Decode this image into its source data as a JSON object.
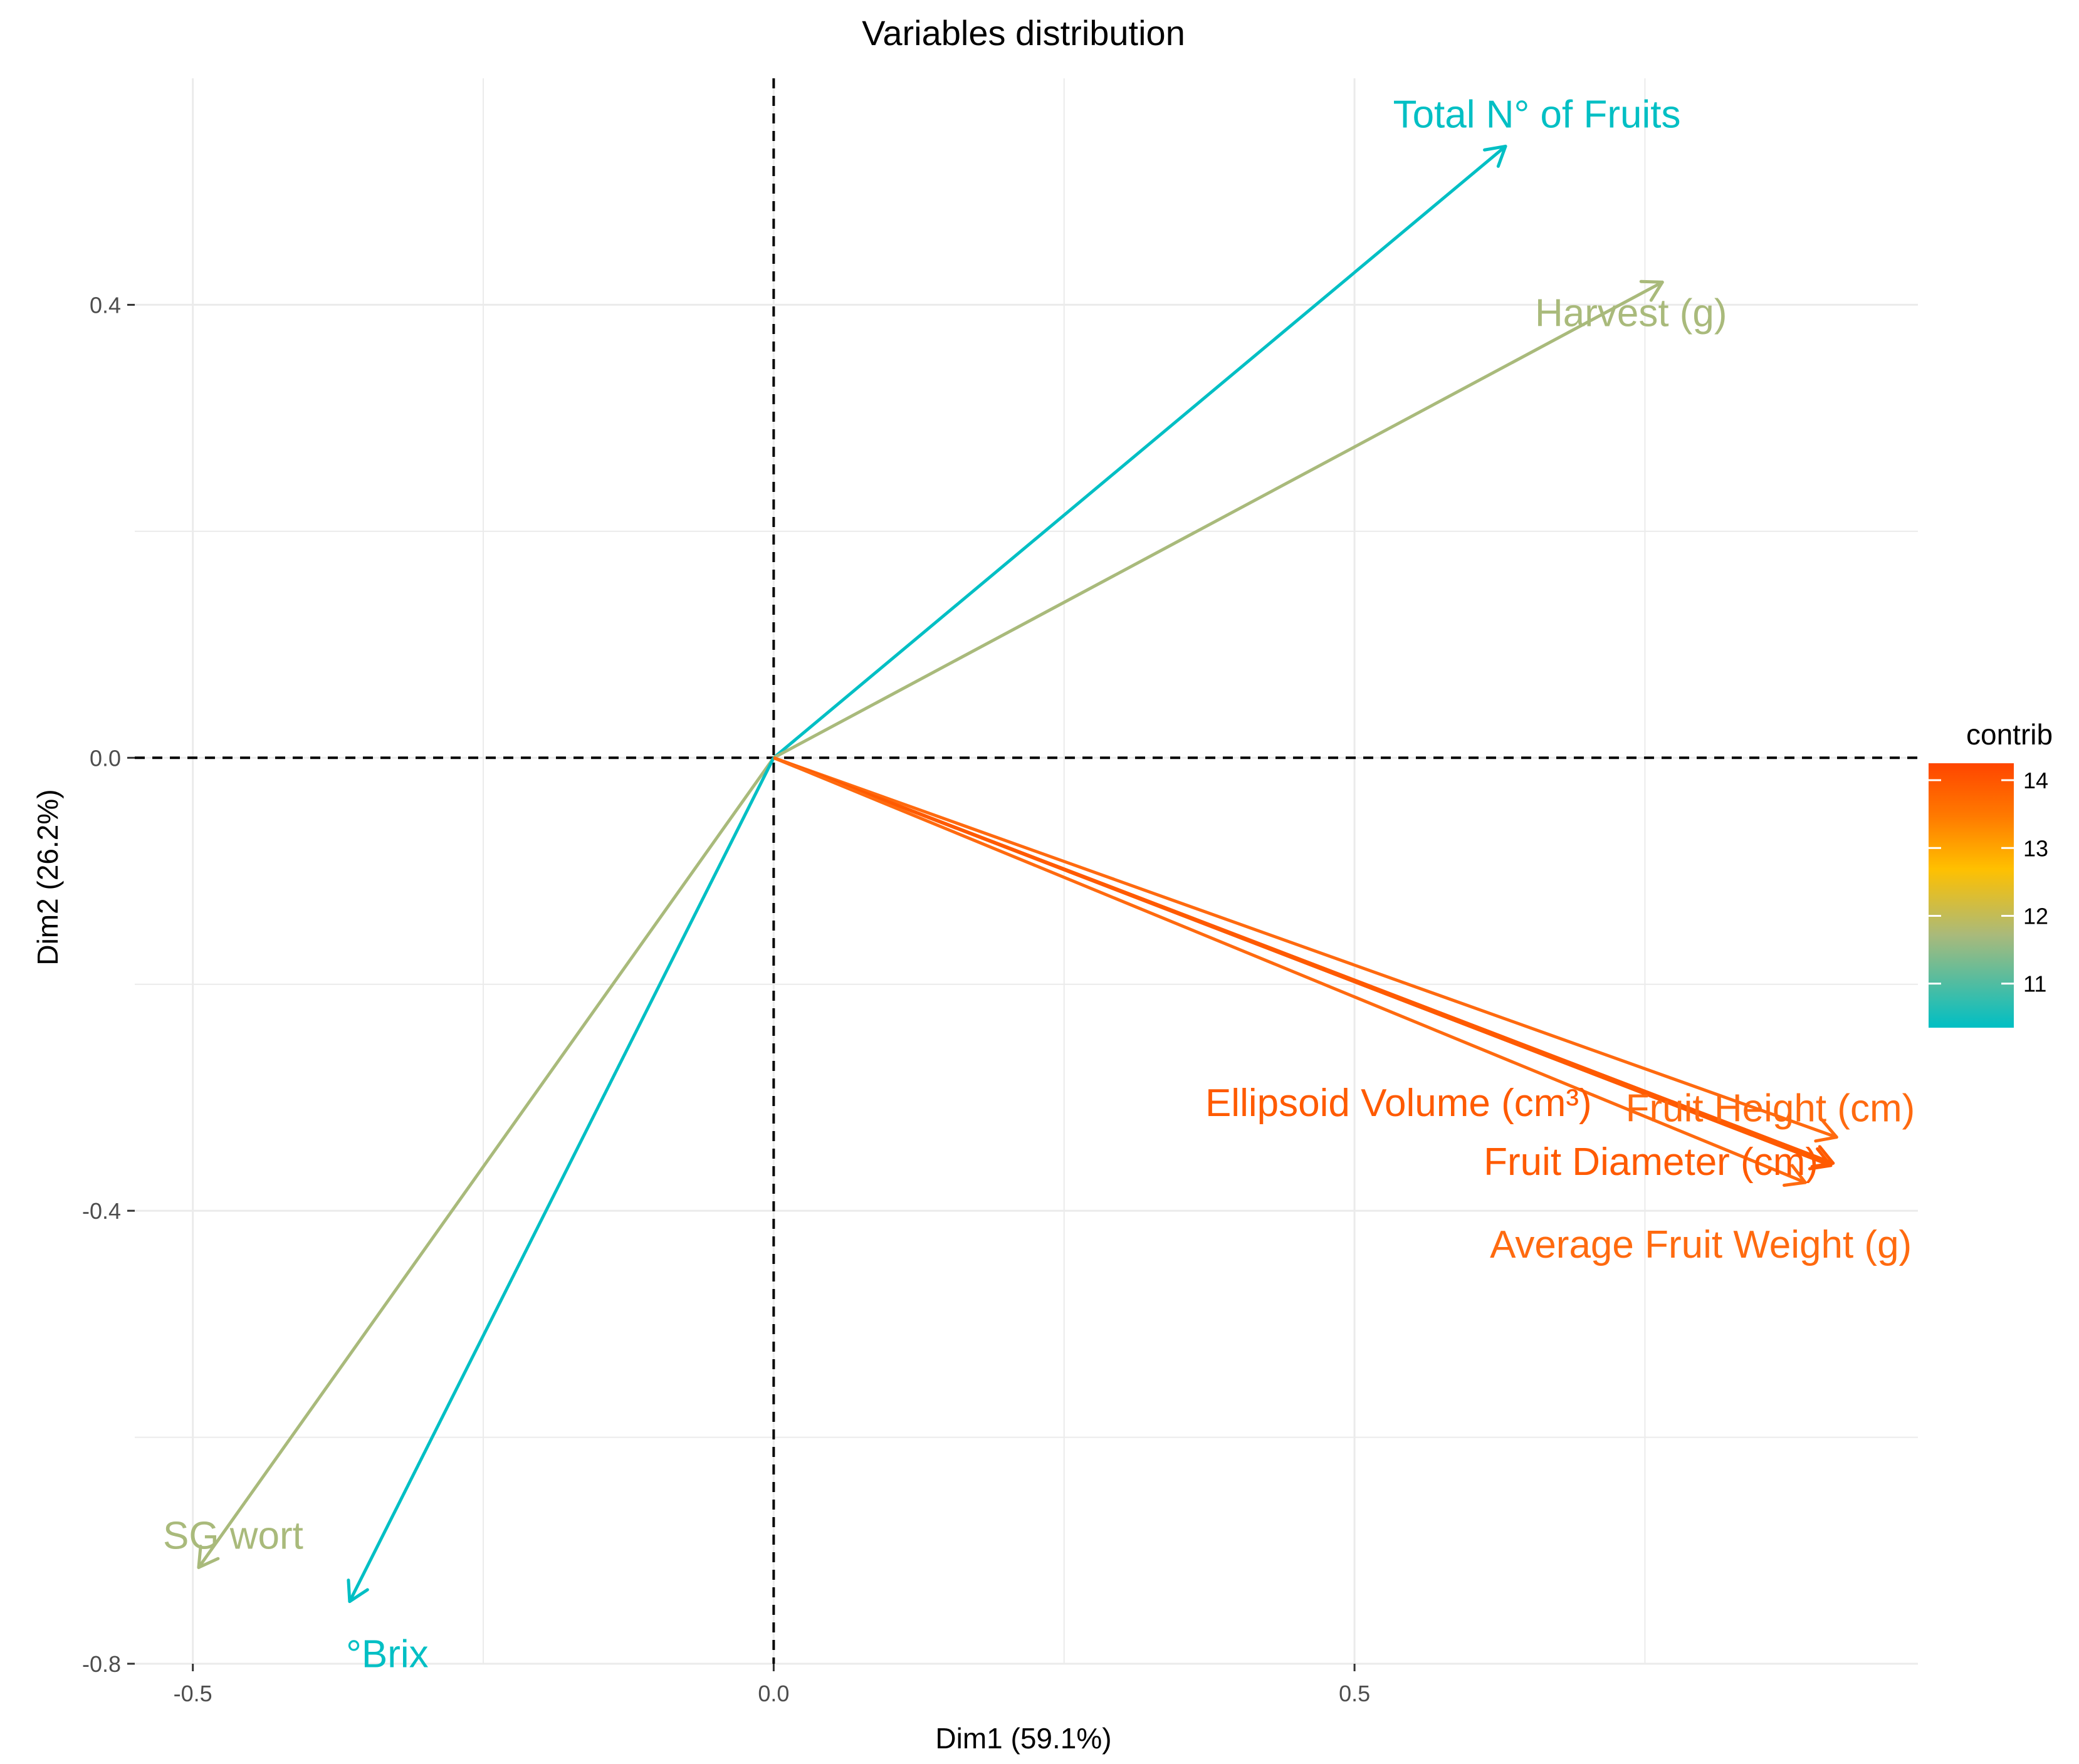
{
  "chart_data": {
    "type": "scatter",
    "subtype": "pca-variable-correlation-arrows",
    "title": "Variables distribution",
    "xlabel": "Dim1 (59.1%)",
    "ylabel": "Dim2 (26.2%)",
    "xlim": [
      -0.55,
      0.985
    ],
    "ylim": [
      -0.8,
      0.6
    ],
    "x_ticks": [
      -0.5,
      0.0,
      0.5
    ],
    "x_tick_labels": [
      "-0.5",
      "0.0",
      "0.5"
    ],
    "y_ticks": [
      -0.8,
      -0.4,
      0.0,
      0.4
    ],
    "y_tick_labels": [
      "-0.8",
      "-0.4",
      "0.0",
      "0.4"
    ],
    "grid": true,
    "reference_lines": {
      "x": 0,
      "y": 0,
      "style": "dashed"
    },
    "variables": [
      {
        "name": "Total N° of Fruits",
        "x": 0.63,
        "y": 0.54,
        "contrib": 10.3,
        "color": "#00BFC4"
      },
      {
        "name": "Harvest (g)",
        "x": 0.765,
        "y": 0.42,
        "contrib": 11.6,
        "color": "#A9BA7B"
      },
      {
        "name": "SG wort",
        "x": -0.495,
        "y": -0.715,
        "contrib": 11.6,
        "color": "#A9BA7B"
      },
      {
        "name": "°Brix",
        "x": -0.365,
        "y": -0.745,
        "contrib": 10.3,
        "color": "#00BFC4"
      },
      {
        "name": "Fruit Height (cm)",
        "x": 0.915,
        "y": -0.335,
        "contrib": 14.2,
        "color": "#FF6A0F"
      },
      {
        "name": "Ellipsoid Volume (cm³)",
        "x": 0.912,
        "y": -0.358,
        "contrib": 14.3,
        "color": "#FF5A00"
      },
      {
        "name": "Fruit Diameter (cm)",
        "x": 0.91,
        "y": -0.36,
        "contrib": 14.3,
        "color": "#FF5A00"
      },
      {
        "name": "Average Fruit Weight (g)",
        "x": 0.888,
        "y": -0.375,
        "contrib": 14.2,
        "color": "#FF6A0F"
      }
    ],
    "legend": {
      "title": "contrib",
      "position": "right",
      "ticks": [
        "11",
        "12",
        "13",
        "14"
      ],
      "gradient": [
        "#00BFC4",
        "#A9BA7B",
        "#FFC000",
        "#FF7A00",
        "#FF4500"
      ]
    }
  }
}
